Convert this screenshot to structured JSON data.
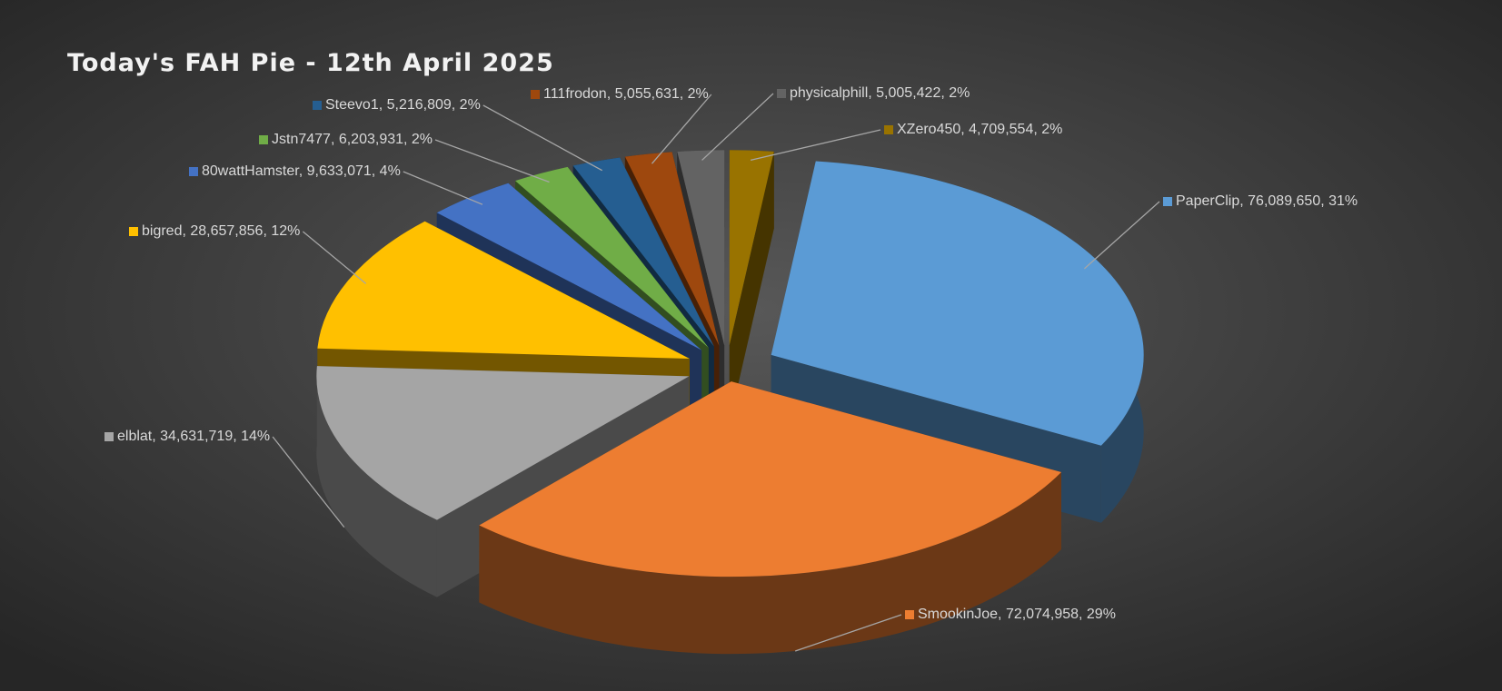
{
  "chart_data": {
    "type": "pie",
    "title": "Today's FAH Pie - 12th April 2025",
    "values": [
      76089650,
      72074958,
      34631719,
      28657856,
      9633071,
      6203931,
      5216809,
      5055631,
      5005422,
      4709554
    ],
    "value_labels": [
      "PaperClip, 76,089,650, 31%",
      "SmookinJoe, 72,074,958, 29%",
      "elblat, 34,631,719, 14%",
      "bigred, 28,657,856, 12%",
      "80wattHamster, 9,633,071, 4%",
      "Jstn7477, 6,203,931, 2%",
      "Steevo1, 5,216,809, 2%",
      "111frodon, 5,055,631, 2%",
      "physicalphill, 5,005,422, 2%",
      "XZero450, 4,709,554, 2%"
    ],
    "colors": [
      "#5b9bd5",
      "#ed7d31",
      "#a5a5a5",
      "#ffc000",
      "#4472c4",
      "#70ad47",
      "#255e91",
      "#9e480e",
      "#636363",
      "#997300"
    ]
  }
}
